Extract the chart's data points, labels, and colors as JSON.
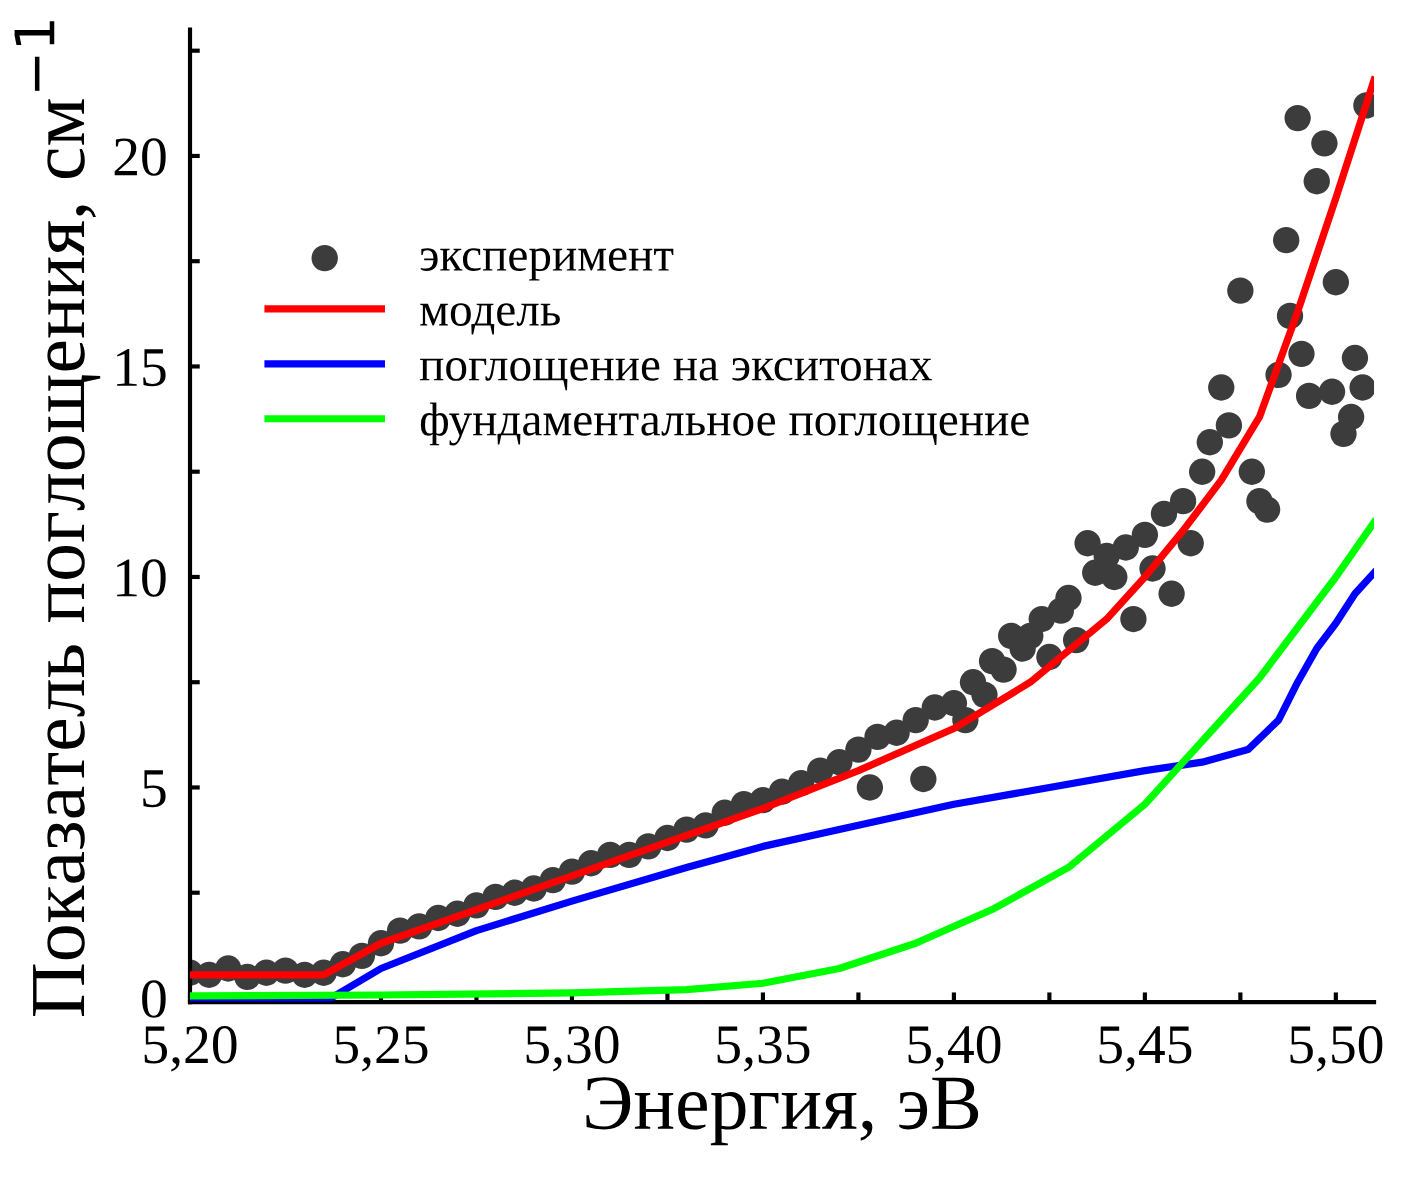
{
  "chart_data": {
    "type": "line",
    "xlabel": "Энергия, эВ",
    "ylabel": "Показатель поглощения, см$^{−1}$",
    "xlim": [
      5.2,
      5.51
    ],
    "ylim": [
      -0.1,
      23
    ],
    "xticks": [
      {
        "value": 5.2,
        "label": "5,20"
      },
      {
        "value": 5.225,
        "label": null
      },
      {
        "value": 5.25,
        "label": "5,25"
      },
      {
        "value": 5.275,
        "label": null
      },
      {
        "value": 5.3,
        "label": "5,30"
      },
      {
        "value": 5.325,
        "label": null
      },
      {
        "value": 5.35,
        "label": "5,35"
      },
      {
        "value": 5.375,
        "label": null
      },
      {
        "value": 5.4,
        "label": "5,40"
      },
      {
        "value": 5.425,
        "label": null
      },
      {
        "value": 5.45,
        "label": "5,45"
      },
      {
        "value": 5.475,
        "label": null
      },
      {
        "value": 5.5,
        "label": "5,50"
      }
    ],
    "yticks": [
      0,
      {
        "value": 2.5,
        "label": null
      },
      5,
      {
        "value": 7.5,
        "label": null
      },
      10,
      {
        "value": 12.5,
        "label": null
      },
      15,
      {
        "value": 17.5,
        "label": null
      },
      20,
      {
        "value": 22.5,
        "label": null
      }
    ],
    "grid": false,
    "legend": "top left",
    "series": [
      {
        "name": "эксперимент",
        "type": "scatter",
        "marker": "circle",
        "color": "#3c3c3c",
        "x": [
          5.2,
          5.205,
          5.21,
          5.215,
          5.22,
          5.225,
          5.23,
          5.235,
          5.24,
          5.245,
          5.25,
          5.255,
          5.26,
          5.265,
          5.27,
          5.275,
          5.28,
          5.285,
          5.29,
          5.295,
          5.3,
          5.305,
          5.31,
          5.315,
          5.32,
          5.325,
          5.33,
          5.335,
          5.34,
          5.345,
          5.35,
          5.355,
          5.36,
          5.365,
          5.37,
          5.375,
          5.378,
          5.38,
          5.385,
          5.39,
          5.392,
          5.395,
          5.4,
          5.403,
          5.405,
          5.408,
          5.41,
          5.413,
          5.415,
          5.418,
          5.42,
          5.423,
          5.425,
          5.428,
          5.43,
          5.432,
          5.435,
          5.437,
          5.44,
          5.442,
          5.445,
          5.447,
          5.45,
          5.452,
          5.455,
          5.457,
          5.46,
          5.462,
          5.465,
          5.467,
          5.47,
          5.472,
          5.475,
          5.478,
          5.48,
          5.482,
          5.485,
          5.487,
          5.488,
          5.49,
          5.491,
          5.493,
          5.495,
          5.497,
          5.499,
          5.5,
          5.502,
          5.504,
          5.505,
          5.507,
          5.508
        ],
        "values": [
          0.6,
          0.55,
          0.7,
          0.5,
          0.6,
          0.65,
          0.55,
          0.6,
          0.8,
          1.0,
          1.3,
          1.6,
          1.7,
          1.9,
          2.0,
          2.2,
          2.4,
          2.5,
          2.6,
          2.8,
          3.0,
          3.2,
          3.4,
          3.4,
          3.6,
          3.8,
          4.0,
          4.1,
          4.4,
          4.6,
          4.7,
          4.9,
          5.1,
          5.4,
          5.6,
          5.9,
          5.0,
          6.2,
          6.3,
          6.6,
          5.2,
          6.9,
          7.0,
          6.6,
          7.5,
          7.2,
          8.0,
          7.8,
          8.6,
          8.3,
          8.6,
          9.0,
          8.1,
          9.2,
          9.5,
          8.5,
          10.8,
          10.1,
          10.5,
          10.0,
          10.7,
          9.0,
          11.0,
          10.2,
          11.5,
          9.6,
          11.8,
          10.8,
          12.5,
          13.2,
          14.5,
          13.6,
          16.8,
          12.5,
          11.8,
          11.6,
          14.8,
          18.0,
          16.2,
          20.9,
          15.3,
          14.3,
          19.4,
          20.3,
          14.4,
          17.0,
          13.4,
          13.8,
          15.2,
          14.5,
          21.2
        ]
      },
      {
        "name": "модель",
        "color": "#ff0000",
        "x": [
          5.2,
          5.235,
          5.25,
          5.275,
          5.3,
          5.325,
          5.35,
          5.375,
          5.4,
          5.42,
          5.44,
          5.45,
          5.46,
          5.47,
          5.48,
          5.49,
          5.5,
          5.51
        ],
        "values": [
          0.55,
          0.55,
          1.3,
          2.1,
          2.9,
          3.7,
          4.5,
          5.4,
          6.4,
          7.5,
          9.0,
          10.0,
          11.1,
          12.3,
          13.8,
          16.3,
          19.0,
          21.8
        ]
      },
      {
        "name": "поглощение на экситонах",
        "color": "#0000ff",
        "x": [
          5.2,
          5.237,
          5.25,
          5.275,
          5.3,
          5.33,
          5.35,
          5.375,
          5.4,
          5.425,
          5.45,
          5.465,
          5.477,
          5.485,
          5.49,
          5.495,
          5.5,
          5.505,
          5.51
        ],
        "values": [
          0.0,
          0.0,
          0.7,
          1.6,
          2.3,
          3.1,
          3.6,
          4.1,
          4.6,
          5.0,
          5.4,
          5.6,
          5.9,
          6.6,
          7.5,
          8.3,
          8.9,
          9.6,
          10.1
        ]
      },
      {
        "name": "фундаментальное поглощение",
        "color": "#00ff00",
        "x": [
          5.2,
          5.25,
          5.3,
          5.33,
          5.35,
          5.37,
          5.39,
          5.41,
          5.43,
          5.45,
          5.46,
          5.48,
          5.5,
          5.51
        ],
        "values": [
          0.05,
          0.07,
          0.12,
          0.2,
          0.35,
          0.7,
          1.3,
          2.1,
          3.1,
          4.6,
          5.6,
          7.6,
          10.0,
          11.3
        ]
      }
    ]
  }
}
